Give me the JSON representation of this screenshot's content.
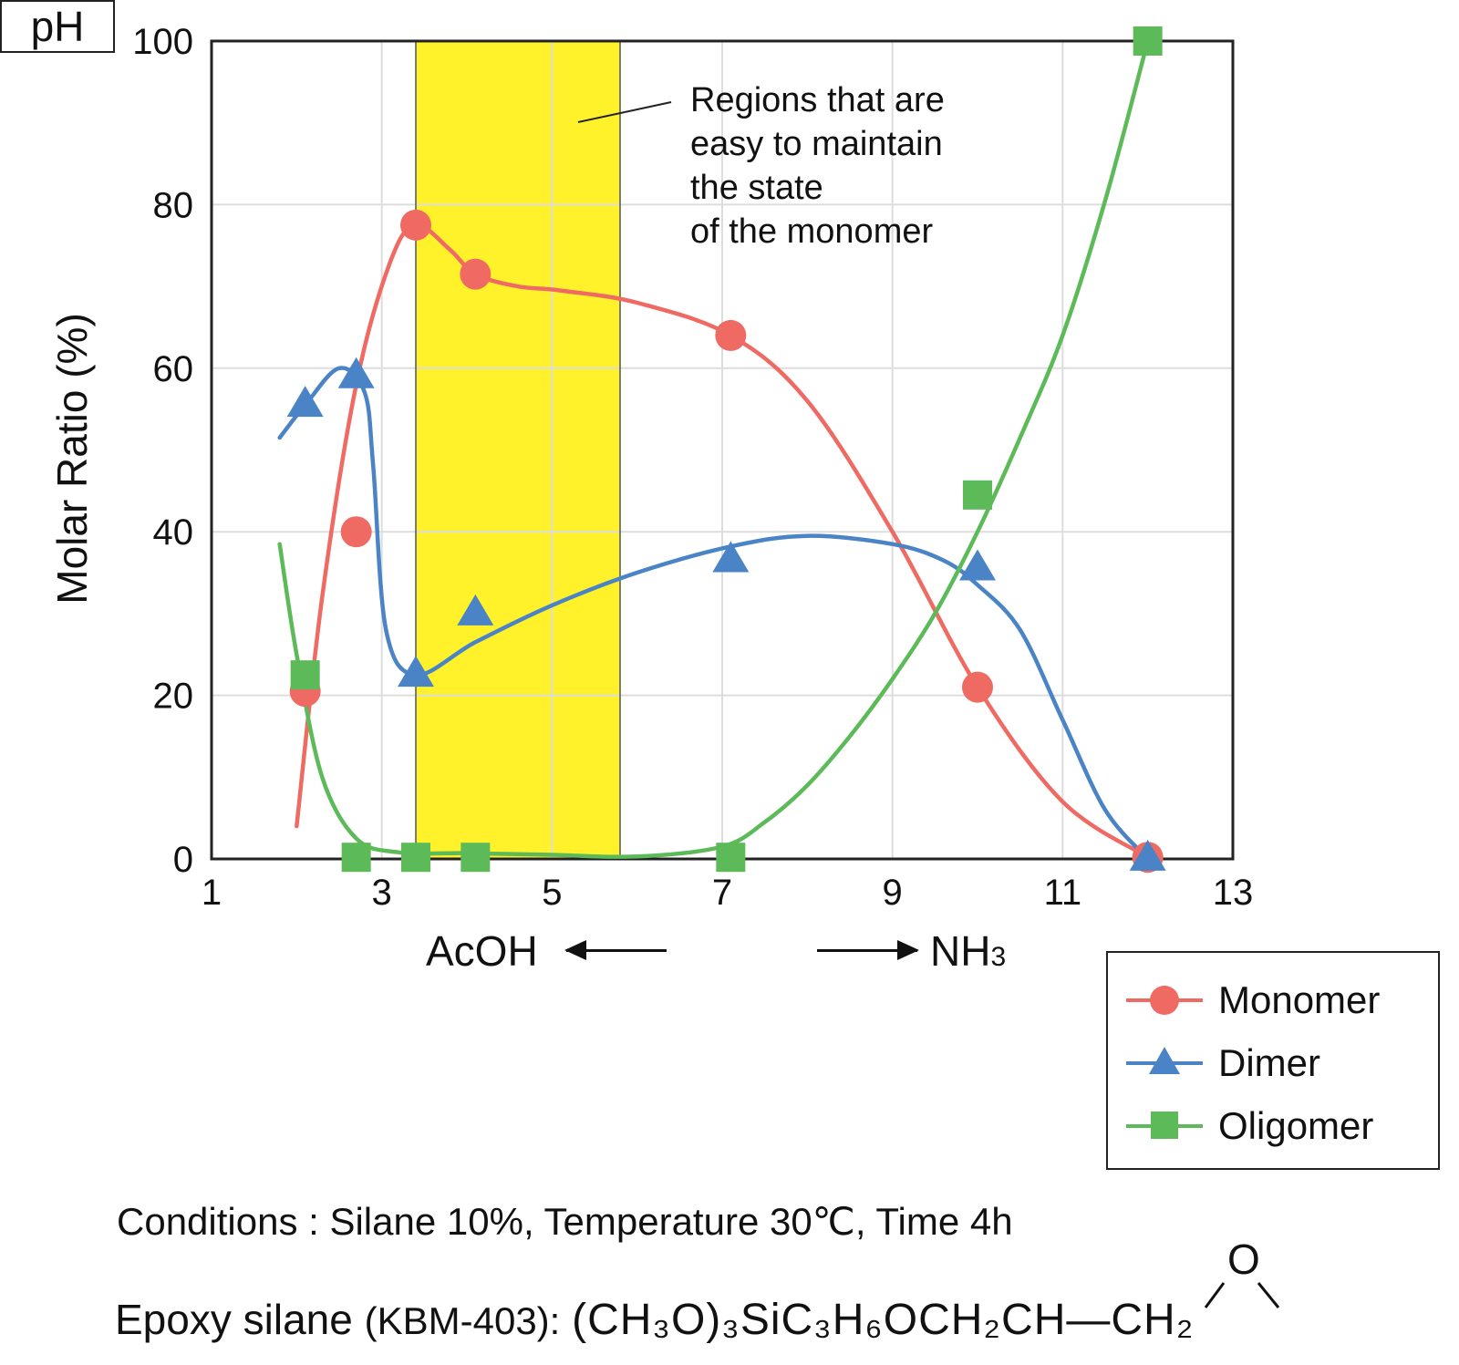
{
  "chart_data": {
    "type": "line",
    "title": "",
    "xlabel": "pH",
    "ylabel": "Molar Ratio (%)",
    "xlim": [
      1,
      13
    ],
    "ylim": [
      0,
      100
    ],
    "xticks": [
      1,
      3,
      5,
      7,
      9,
      11,
      13
    ],
    "yticks": [
      0,
      20,
      40,
      60,
      80,
      100
    ],
    "grid": true,
    "legend_position": "bottom-right, outside plot",
    "highlight_region": {
      "x_range": [
        3.4,
        5.8
      ],
      "color": "#fff22b",
      "label_lines": [
        "Regions that are",
        "easy to maintain",
        "the state",
        "of the monomer"
      ]
    },
    "series": [
      {
        "name": "Monomer",
        "color": "#ef6a63",
        "marker": "circle",
        "points": [
          [
            2.1,
            20.5
          ],
          [
            2.7,
            40
          ],
          [
            3.4,
            77.5
          ],
          [
            4.1,
            71.5
          ],
          [
            7.1,
            64
          ],
          [
            10.0,
            21
          ],
          [
            12.0,
            0.2
          ]
        ],
        "curve": [
          [
            2.0,
            4
          ],
          [
            2.3,
            32
          ],
          [
            2.7,
            58
          ],
          [
            3.1,
            73
          ],
          [
            3.4,
            77.5
          ],
          [
            3.8,
            74.5
          ],
          [
            4.1,
            71.5
          ],
          [
            4.6,
            70
          ],
          [
            5.1,
            69.5
          ],
          [
            6.0,
            68
          ],
          [
            7.1,
            64
          ],
          [
            8.0,
            56
          ],
          [
            9.0,
            40
          ],
          [
            10.0,
            21
          ],
          [
            11.0,
            7
          ],
          [
            12.0,
            0.2
          ]
        ]
      },
      {
        "name": "Dimer",
        "color": "#4a84c6",
        "marker": "triangle",
        "points": [
          [
            2.1,
            55.5
          ],
          [
            2.7,
            59
          ],
          [
            3.4,
            22.5
          ],
          [
            4.1,
            30
          ],
          [
            7.1,
            36.5
          ],
          [
            10.0,
            35.5
          ],
          [
            12.0,
            0
          ]
        ],
        "curve": [
          [
            1.8,
            51.5
          ],
          [
            2.1,
            55.5
          ],
          [
            2.5,
            60
          ],
          [
            2.8,
            57
          ],
          [
            2.9,
            48
          ],
          [
            3.05,
            28
          ],
          [
            3.4,
            22.5
          ],
          [
            4.1,
            26.5
          ],
          [
            5.0,
            31
          ],
          [
            6.0,
            35
          ],
          [
            7.1,
            38.2
          ],
          [
            8.0,
            39.5
          ],
          [
            9.0,
            38.5
          ],
          [
            9.6,
            36.5
          ],
          [
            10.0,
            33.5
          ],
          [
            10.5,
            28
          ],
          [
            11.0,
            17
          ],
          [
            11.5,
            6
          ],
          [
            12.0,
            0
          ]
        ]
      },
      {
        "name": "Oligomer",
        "color": "#5dba59",
        "marker": "square",
        "points": [
          [
            2.1,
            22.5
          ],
          [
            2.7,
            0.2
          ],
          [
            3.4,
            0.2
          ],
          [
            4.1,
            0.2
          ],
          [
            7.1,
            0.2
          ],
          [
            10.0,
            44.5
          ],
          [
            12.0,
            100
          ]
        ],
        "curve": [
          [
            1.8,
            38.5
          ],
          [
            2.0,
            25
          ],
          [
            2.3,
            10
          ],
          [
            2.7,
            2.5
          ],
          [
            3.2,
            0.8
          ],
          [
            4.0,
            0.7
          ],
          [
            5.0,
            0.5
          ],
          [
            6.0,
            0.3
          ],
          [
            7.0,
            1.5
          ],
          [
            7.5,
            4.5
          ],
          [
            8.0,
            9
          ],
          [
            8.5,
            15
          ],
          [
            9.0,
            22
          ],
          [
            9.5,
            30
          ],
          [
            10.0,
            40
          ],
          [
            10.5,
            51.5
          ],
          [
            11.0,
            64
          ],
          [
            11.5,
            80.5
          ],
          [
            12.0,
            100
          ]
        ]
      }
    ]
  },
  "xaxis_caption": {
    "left": "AcOH",
    "center": "pH",
    "right_main": "NH",
    "right_sub": "3"
  },
  "legend": {
    "items": [
      "Monomer",
      "Dimer",
      "Oligomer"
    ]
  },
  "conditions": "Conditions : Silane 10%, Temperature 30℃, Time 4h",
  "epoxy": {
    "label": "Epoxy silane",
    "code": "(KBM-403):",
    "formula": "(CH₃O)₃SiC₃H₆OCH₂CH—CH₂",
    "ring_atom": "O"
  }
}
